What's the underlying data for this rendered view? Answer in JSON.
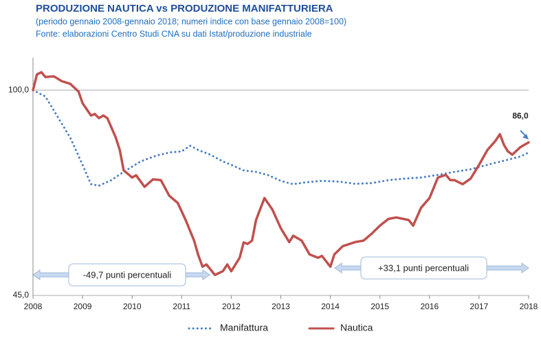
{
  "chart_data": {
    "type": "line",
    "title": "PRODUZIONE NAUTICA vs PRODUZIONE MANIFATTURIERA",
    "subtitle": [
      "(periodo gennaio 2008-gennaio 2018; numeri indice con base gennaio 2008=100)",
      "Fonte: elaborazioni Centro Studi CNA su dati Istat/produzione industriale"
    ],
    "annotations": [
      "-49,7 punti percentuali",
      "+33,1 punti percentuali"
    ],
    "xlim": [
      2008,
      2018
    ],
    "xticks": [
      2008,
      2009,
      2010,
      2011,
      2012,
      2013,
      2014,
      2015,
      2016,
      2017,
      2018
    ],
    "ylim": [
      45,
      105
    ],
    "yticks": [
      {
        "value": 45,
        "label": "45,0"
      },
      {
        "value": 100,
        "label": "100,0"
      }
    ],
    "grid": true,
    "legend": "bottom",
    "series": [
      {
        "name": "Manifattura",
        "color": "#4a7fc1",
        "style": "dotted",
        "x": [
          2008,
          2008.25,
          2008.5,
          2008.75,
          2009,
          2009.17,
          2009.33,
          2009.58,
          2009.83,
          2010.17,
          2010.5,
          2010.75,
          2011,
          2011.17,
          2011.33,
          2011.58,
          2011.83,
          2012,
          2012.25,
          2012.5,
          2012.75,
          2013,
          2013.25,
          2013.5,
          2013.83,
          2014.17,
          2014.5,
          2014.83,
          2015.17,
          2015.5,
          2015.83,
          2016.17,
          2016.5,
          2016.83,
          2017.17,
          2017.5,
          2017.83,
          2018
        ],
        "values": [
          100,
          98.3,
          92.8,
          87.3,
          80.0,
          74.8,
          74.4,
          75.9,
          78.1,
          80.9,
          82.5,
          83.3,
          83.6,
          85.1,
          84.0,
          82.7,
          80.9,
          80.0,
          78.5,
          78.1,
          77.2,
          75.7,
          74.8,
          75.3,
          75.7,
          75.5,
          74.9,
          75.1,
          75.9,
          76.3,
          76.6,
          77.3,
          78.1,
          78.8,
          80.0,
          81.1,
          82.2,
          83.3
        ]
      },
      {
        "name": "Nautica",
        "color": "#c0504d",
        "style": "solid",
        "x": [
          2008,
          2008.08,
          2008.17,
          2008.25,
          2008.42,
          2008.58,
          2008.75,
          2008.92,
          2009,
          2009.17,
          2009.25,
          2009.33,
          2009.42,
          2009.5,
          2009.67,
          2009.75,
          2009.83,
          2010,
          2010.08,
          2010.25,
          2010.42,
          2010.58,
          2010.75,
          2010.92,
          2011.08,
          2011.25,
          2011.33,
          2011.42,
          2011.5,
          2011.67,
          2011.83,
          2011.92,
          2012,
          2012.17,
          2012.25,
          2012.33,
          2012.42,
          2012.5,
          2012.67,
          2012.83,
          2013,
          2013.17,
          2013.25,
          2013.42,
          2013.58,
          2013.75,
          2013.83,
          2014,
          2014.08,
          2014.25,
          2014.5,
          2014.67,
          2014.83,
          2015,
          2015.17,
          2015.33,
          2015.58,
          2015.67,
          2015.83,
          2016,
          2016.17,
          2016.33,
          2016.42,
          2016.5,
          2016.67,
          2016.83,
          2017,
          2017.17,
          2017.33,
          2017.42,
          2017.5,
          2017.58,
          2017.67,
          2017.83,
          2018
        ],
        "values": [
          100,
          104.2,
          104.8,
          103.5,
          103.7,
          102.4,
          101.7,
          99.6,
          96.5,
          93.2,
          93.6,
          92.5,
          93.2,
          92.5,
          87.3,
          84.0,
          78.5,
          76.6,
          77.2,
          74.1,
          76.1,
          75.9,
          71.7,
          69.8,
          65.2,
          59.7,
          56.0,
          52.7,
          53.3,
          50.5,
          51.5,
          53.3,
          51.5,
          55.1,
          59.2,
          58.8,
          59.7,
          65.2,
          71.1,
          68.0,
          63.0,
          59.3,
          61.0,
          59.7,
          56.0,
          55.1,
          55.6,
          52.7,
          56.0,
          58.2,
          59.3,
          59.7,
          61.5,
          63.7,
          65.5,
          65.9,
          65.2,
          63.7,
          68.5,
          71.1,
          76.6,
          77.3,
          75.9,
          75.9,
          74.8,
          76.3,
          80.0,
          84.0,
          86.4,
          88.2,
          85.4,
          83.6,
          82.7,
          84.7,
          86.0
        ],
        "value_labels": [
          null,
          null,
          null,
          null,
          null,
          null,
          null,
          null,
          null,
          null,
          null,
          null,
          null,
          null,
          null,
          null,
          null,
          null,
          null,
          null,
          null,
          null,
          null,
          null,
          null,
          null,
          null,
          null,
          null,
          null,
          null,
          null,
          null,
          null,
          null,
          null,
          null,
          null,
          null,
          null,
          null,
          null,
          null,
          null,
          null,
          null,
          null,
          null,
          null,
          null,
          null,
          null,
          null,
          null,
          null,
          null,
          null,
          null,
          null,
          null,
          null,
          null,
          null,
          null,
          null,
          null,
          null,
          null,
          null,
          null,
          null,
          null,
          null,
          null,
          "86,0"
        ]
      }
    ]
  }
}
